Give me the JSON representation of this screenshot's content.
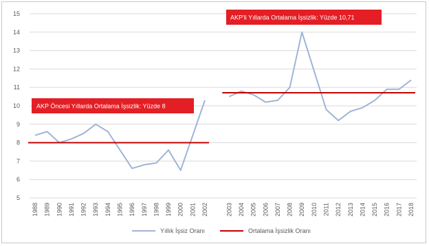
{
  "chart_data": {
    "type": "line",
    "ylim": [
      5,
      15
    ],
    "yticks": [
      "5",
      "6",
      "7",
      "8",
      "9",
      "10",
      "11",
      "12",
      "13",
      "14",
      "15"
    ],
    "categories": [
      "1988",
      "1989",
      "1990",
      "1991",
      "1992",
      "1993",
      "1994",
      "1995",
      "1996",
      "1997",
      "1998",
      "1999",
      "2000",
      "2001",
      "2002",
      "",
      "2003",
      "2004",
      "2005",
      "2006",
      "2007",
      "2008",
      "2009",
      "2010",
      "2011",
      "2012",
      "2013",
      "2014",
      "2015",
      "2016",
      "2017",
      "2018"
    ],
    "series": [
      {
        "name": "Yıllık İşsiz Oranı",
        "color": "#9fb4d6",
        "values": [
          8.4,
          8.6,
          8.0,
          8.2,
          8.5,
          9.0,
          8.6,
          7.6,
          6.6,
          6.8,
          6.9,
          7.6,
          6.5,
          8.4,
          10.3,
          null,
          10.5,
          10.8,
          10.6,
          10.2,
          10.3,
          11.0,
          14.0,
          11.9,
          9.8,
          9.2,
          9.7,
          9.9,
          10.3,
          10.9,
          10.9,
          11.4
        ]
      },
      {
        "name": "Ortalama İşsizlik Oranı",
        "color": "#c00000",
        "values": [
          8,
          8,
          8,
          8,
          8,
          8,
          8,
          8,
          8,
          8,
          8,
          8,
          8,
          8,
          8,
          null,
          10.71,
          10.71,
          10.71,
          10.71,
          10.71,
          10.71,
          10.71,
          10.71,
          10.71,
          10.71,
          10.71,
          10.71,
          10.71,
          10.71,
          10.71,
          10.71
        ]
      }
    ],
    "annotations": [
      {
        "text": "AKP Öncesi Yıllarda Ortalama İşsizlik: Yüzde 8",
        "color": "#e31e24"
      },
      {
        "text": "AKP'li Yıllarda Ortalama İşsizlik: Yüzde 10,71",
        "color": "#e31e24"
      }
    ],
    "legend": "bottom",
    "grid": true
  }
}
